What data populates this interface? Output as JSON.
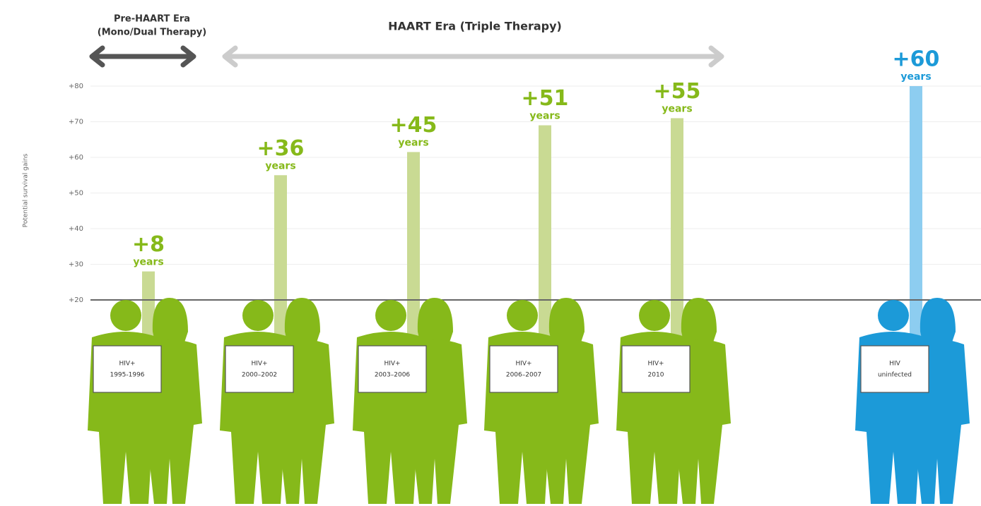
{
  "chart_data": {
    "type": "bar",
    "era_labels": {
      "pre_haart": [
        "Pre-HAART Era",
        "(Mono/Dual Therapy)"
      ],
      "haart": "HAART Era (Triple Therapy)"
    },
    "y_axis_label": "Potential survival gains",
    "categories": [
      [
        "HIV+",
        "1995-1996"
      ],
      [
        "HIV+",
        "2000–2002"
      ],
      [
        "HIV+",
        "2003–2006"
      ],
      [
        "HIV+",
        "2006–2007"
      ],
      [
        "HIV+",
        "2010"
      ],
      [
        "HIV",
        "uninfected"
      ]
    ],
    "values": [
      28,
      55,
      61.5,
      69,
      71,
      80
    ],
    "gains": [
      {
        "value": 8,
        "label": "+8"
      },
      {
        "value": 36,
        "label": "+36"
      },
      {
        "value": 45,
        "label": "+45"
      },
      {
        "value": 51,
        "label": "+51"
      },
      {
        "value": 55,
        "label": "+55"
      },
      {
        "value": 60,
        "label": "+60"
      }
    ],
    "gain_unit": "years",
    "bar_colors": [
      "#c9da93",
      "#c9da93",
      "#c9da93",
      "#c9da93",
      "#c9da93",
      "#8dcdf0"
    ],
    "figure_colors": [
      "#86b91a",
      "#86b91a",
      "#86b91a",
      "#86b91a",
      "#86b91a",
      "#1c9ad8"
    ],
    "ylim": [
      20,
      80
    ],
    "yticks": [
      {
        "value": 20,
        "label": "+20"
      },
      {
        "value": 30,
        "label": "+30"
      },
      {
        "value": 40,
        "label": "+40"
      },
      {
        "value": 50,
        "label": "+50"
      },
      {
        "value": 60,
        "label": "+60"
      },
      {
        "value": 70,
        "label": "+70"
      },
      {
        "value": 80,
        "label": "+80"
      }
    ],
    "grid": true
  }
}
